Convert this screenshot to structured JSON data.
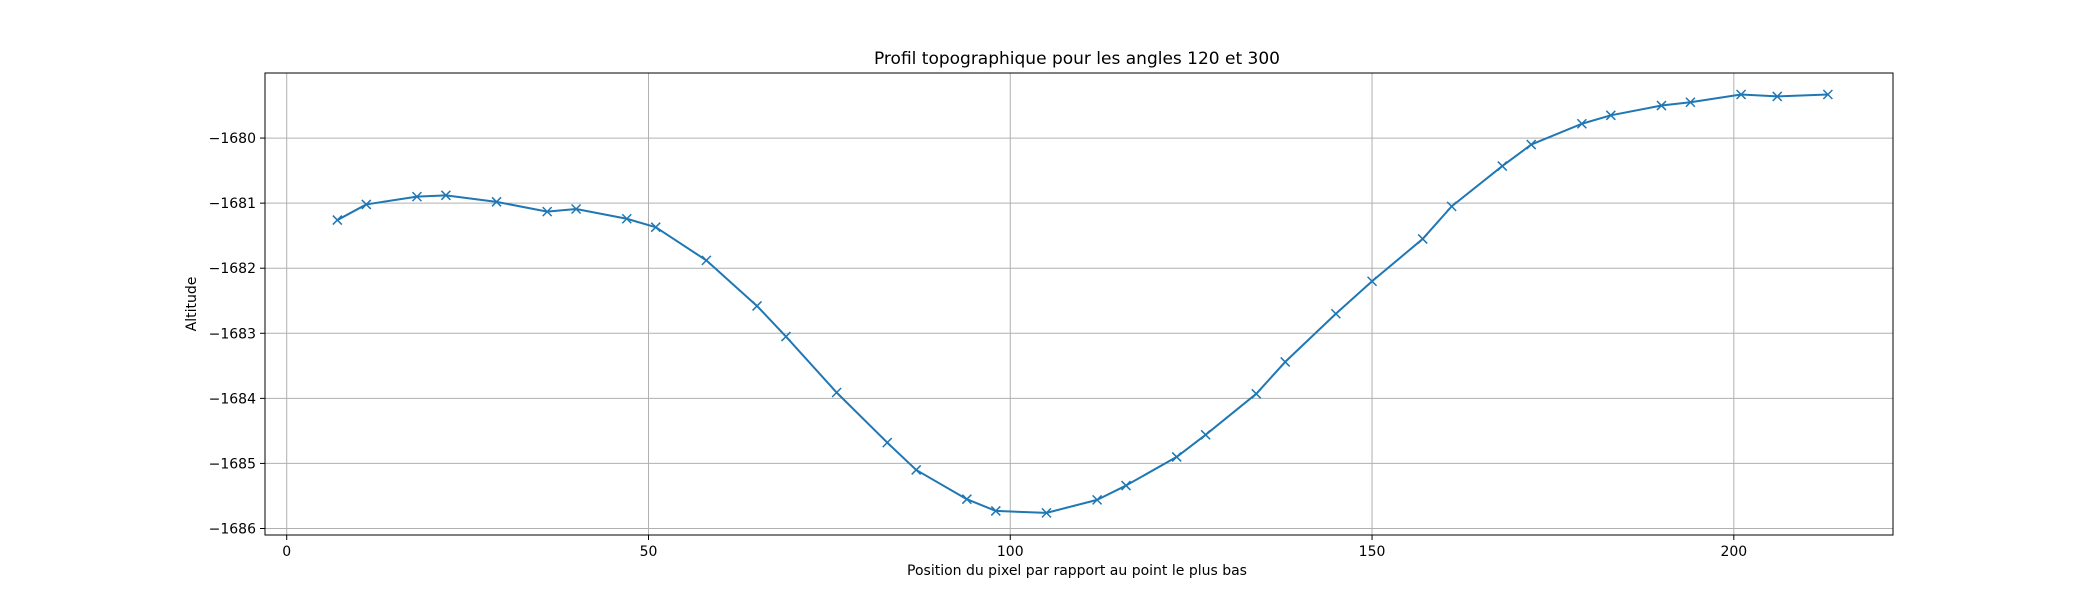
{
  "chart_data": {
    "type": "line",
    "title": "Profil topographique pour les angles 120 et 300",
    "xlabel": "Position du pixel par rapport au point le plus bas",
    "ylabel": "Altitude",
    "xlim": [
      -3,
      222
    ],
    "ylim": [
      -1686.1,
      -1679.0
    ],
    "xticks": [
      0,
      50,
      100,
      150,
      200
    ],
    "xtick_labels": [
      "0",
      "50",
      "100",
      "150",
      "200"
    ],
    "yticks": [
      -1686,
      -1685,
      -1684,
      -1683,
      -1682,
      -1681,
      -1680
    ],
    "ytick_labels": [
      "−1686",
      "−1685",
      "−1684",
      "−1683",
      "−1682",
      "−1681",
      "−1680"
    ],
    "grid": true,
    "marker": "x",
    "color": "#1f77b4",
    "series": [
      {
        "x": [
          7,
          11,
          18,
          22,
          29,
          36,
          40,
          47,
          51,
          58,
          65,
          69,
          76,
          83,
          87,
          94,
          98,
          105,
          112,
          116,
          123,
          127,
          134,
          138,
          145,
          150,
          157,
          161,
          168,
          172,
          179,
          183,
          190,
          194,
          201,
          206,
          213
        ],
        "y": [
          -1681.26,
          -1681.02,
          -1680.9,
          -1680.88,
          -1680.98,
          -1681.13,
          -1681.09,
          -1681.24,
          -1681.37,
          -1681.88,
          -1682.58,
          -1683.05,
          -1683.91,
          -1684.68,
          -1685.1,
          -1685.55,
          -1685.73,
          -1685.76,
          -1685.56,
          -1685.34,
          -1684.9,
          -1684.56,
          -1683.93,
          -1683.44,
          -1682.7,
          -1682.2,
          -1681.55,
          -1681.05,
          -1680.43,
          -1680.1,
          -1679.78,
          -1679.65,
          -1679.5,
          -1679.45,
          -1679.33,
          -1679.36,
          -1679.33
        ]
      }
    ]
  }
}
